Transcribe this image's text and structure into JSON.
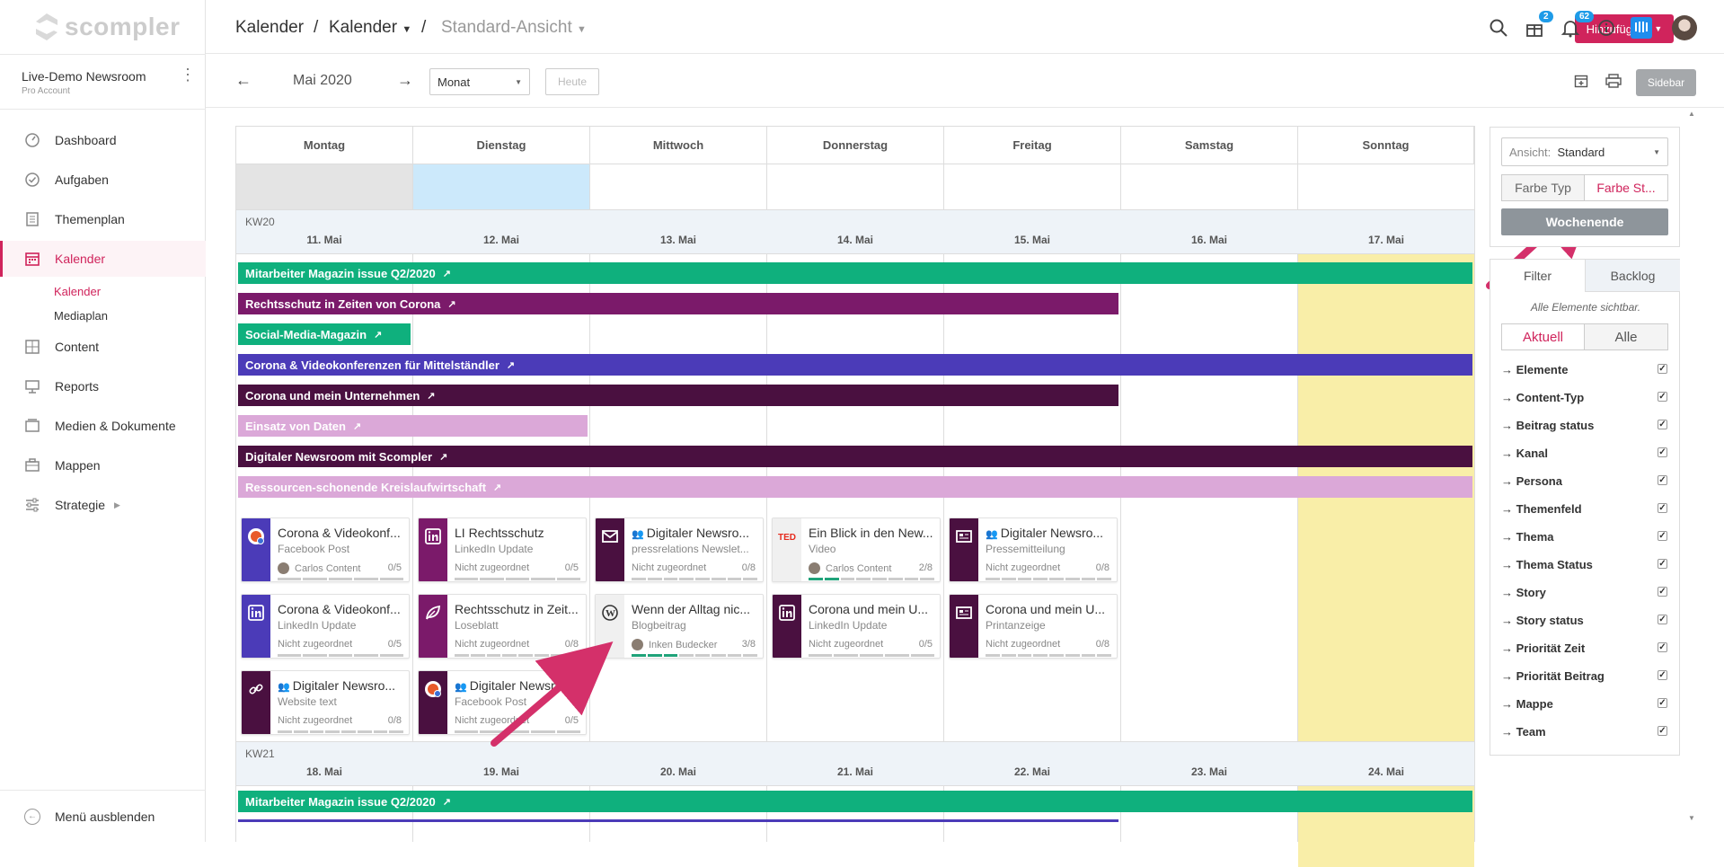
{
  "app": {
    "logo": "scompler"
  },
  "account": {
    "name": "Live-Demo Newsroom",
    "plan": "Pro Account"
  },
  "nav": [
    {
      "label": "Dashboard",
      "icon": "dashboard-icon"
    },
    {
      "label": "Aufgaben",
      "icon": "check-circle-icon"
    },
    {
      "label": "Themenplan",
      "icon": "document-icon"
    },
    {
      "label": "Kalender",
      "icon": "calendar-icon"
    },
    {
      "label": "Content",
      "icon": "grid-icon"
    },
    {
      "label": "Reports",
      "icon": "monitor-icon"
    },
    {
      "label": "Medien & Dokumente",
      "icon": "media-icon"
    },
    {
      "label": "Mappen",
      "icon": "briefcase-icon"
    },
    {
      "label": "Strategie",
      "icon": "sliders-icon"
    }
  ],
  "subnav": [
    "Kalender",
    "Mediaplan"
  ],
  "hide_menu": "Menü ausblenden",
  "breadcrumb": {
    "first": "Kalender",
    "sep": "/",
    "second": "Kalender",
    "view": "Standard-Ansicht"
  },
  "header": {
    "add_label": "Hinzufügen",
    "badge_gift": "2",
    "badge_bell": "62"
  },
  "toolbar": {
    "month": "Mai 2020",
    "range": "Monat",
    "today": "Heute",
    "sidebar": "Sidebar"
  },
  "weekdays": [
    "Montag",
    "Dienstag",
    "Mittwoch",
    "Donnerstag",
    "Freitag",
    "Samstag",
    "Sonntag"
  ],
  "weeks": [
    {
      "kw": "KW20",
      "days": [
        "11. Mai",
        "12. Mai",
        "13. Mai",
        "14. Mai",
        "15. Mai",
        "16. Mai",
        "17. Mai"
      ]
    },
    {
      "kw": "KW21",
      "days": [
        "18. Mai",
        "19. Mai",
        "20. Mai",
        "21. Mai",
        "22. Mai",
        "23. Mai",
        "24. Mai"
      ]
    }
  ],
  "bars": [
    {
      "label": "Mitarbeiter Magazin issue Q2/2020",
      "color": "#0fb07d",
      "span": 7
    },
    {
      "label": "Rechtsschutz in Zeiten von Corona",
      "color": "#7b1a6a",
      "span": 5
    },
    {
      "label": "Social-Media-Magazin",
      "color": "#0fb07d",
      "span": 1
    },
    {
      "label": "Corona & Videokonferenzen für Mittelständler",
      "color": "#4b3bb8",
      "span": 7
    },
    {
      "label": "Corona und mein Unternehmen",
      "color": "#4a1040",
      "span": 5
    },
    {
      "label": "Einsatz von Daten",
      "color": "#dba8d8",
      "span": 2
    },
    {
      "label": "Digitaler Newsroom mit Scompler",
      "color": "#4a1040",
      "span": 7
    },
    {
      "label": "Ressourcen-schonende Kreislaufwirtschaft",
      "color": "#dba8d8",
      "span": 7
    }
  ],
  "next_week_bar": {
    "label": "Mitarbeiter Magazin issue Q2/2020",
    "color": "#0fb07d"
  },
  "cards": [
    {
      "title": "Corona & Videokonf...",
      "type": "Facebook Post",
      "owner": "Carlos Content",
      "count": "0/5",
      "color": "#4b3bb8",
      "icon": "facebook-icon",
      "done": 0
    },
    {
      "title": "LI Rechtsschutz",
      "type": "LinkedIn Update",
      "owner": "Nicht zugeordnet",
      "count": "0/5",
      "color": "#7b1a6a",
      "icon": "linkedin-icon",
      "done": 0
    },
    {
      "title": "Digitaler Newsro...",
      "type": "pressrelations Newslet...",
      "owner": "Nicht zugeordnet",
      "count": "0/8",
      "color": "#4a1040",
      "icon": "mail-icon",
      "done": 0
    },
    {
      "title": "Ein Blick in den New...",
      "type": "Video",
      "owner": "Carlos Content",
      "count": "2/8",
      "color": "#f0f0f0",
      "icon": "ted-icon",
      "done": 2
    },
    {
      "title": "Digitaler Newsro...",
      "type": "Pressemitteilung",
      "owner": "Nicht zugeordnet",
      "count": "0/8",
      "color": "#4a1040",
      "icon": "newspaper-icon",
      "done": 0
    },
    {
      "title": "Corona & Videokonf...",
      "type": "LinkedIn Update",
      "owner": "Nicht zugeordnet",
      "count": "0/5",
      "color": "#4b3bb8",
      "icon": "linkedin-icon",
      "done": 0
    },
    {
      "title": "Rechtsschutz in Zeit...",
      "type": "Loseblatt",
      "owner": "Nicht zugeordnet",
      "count": "0/8",
      "color": "#7b1a6a",
      "icon": "leaf-icon",
      "done": 0
    },
    {
      "title": "Wenn der Alltag nic...",
      "type": "Blogbeitrag",
      "owner": "Inken Budecker",
      "count": "3/8",
      "color": "#f0f0f0",
      "icon": "wordpress-icon",
      "done": 3
    },
    {
      "title": "Corona und mein U...",
      "type": "LinkedIn Update",
      "owner": "Nicht zugeordnet",
      "count": "0/5",
      "color": "#4a1040",
      "icon": "linkedin-icon",
      "done": 0
    },
    {
      "title": "Corona und mein U...",
      "type": "Printanzeige",
      "owner": "Nicht zugeordnet",
      "count": "0/8",
      "color": "#4a1040",
      "icon": "newspaper-icon",
      "done": 0
    },
    {
      "title": "Digitaler Newsro...",
      "type": "Website text",
      "owner": "Nicht zugeordnet",
      "count": "0/8",
      "color": "#4a1040",
      "icon": "link-icon",
      "done": 0
    },
    {
      "title": "Digitaler Newsro...",
      "type": "Facebook Post",
      "owner": "Nicht zugeordnet",
      "count": "0/5",
      "color": "#4a1040",
      "icon": "facebook-icon",
      "done": 0
    }
  ],
  "panel": {
    "view_label": "Ansicht:",
    "view_value": "Standard",
    "color_type": "Farbe Typ",
    "color_status": "Farbe St...",
    "weekend": "Wochenende",
    "tab_filter": "Filter",
    "tab_backlog": "Backlog",
    "all_visible": "Alle Elemente sichtbar.",
    "current": "Aktuell",
    "all": "Alle",
    "filters": [
      "Elemente",
      "Content-Typ",
      "Beitrag status",
      "Kanal",
      "Persona",
      "Themenfeld",
      "Thema",
      "Thema Status",
      "Story",
      "Story status",
      "Priorität Zeit",
      "Priorität Beitrag",
      "Mappe",
      "Team"
    ]
  },
  "colors": {
    "accent": "#d0245c",
    "weekend": "#f9eea8",
    "today": "#cce9fb",
    "info": "#1e9be8"
  }
}
